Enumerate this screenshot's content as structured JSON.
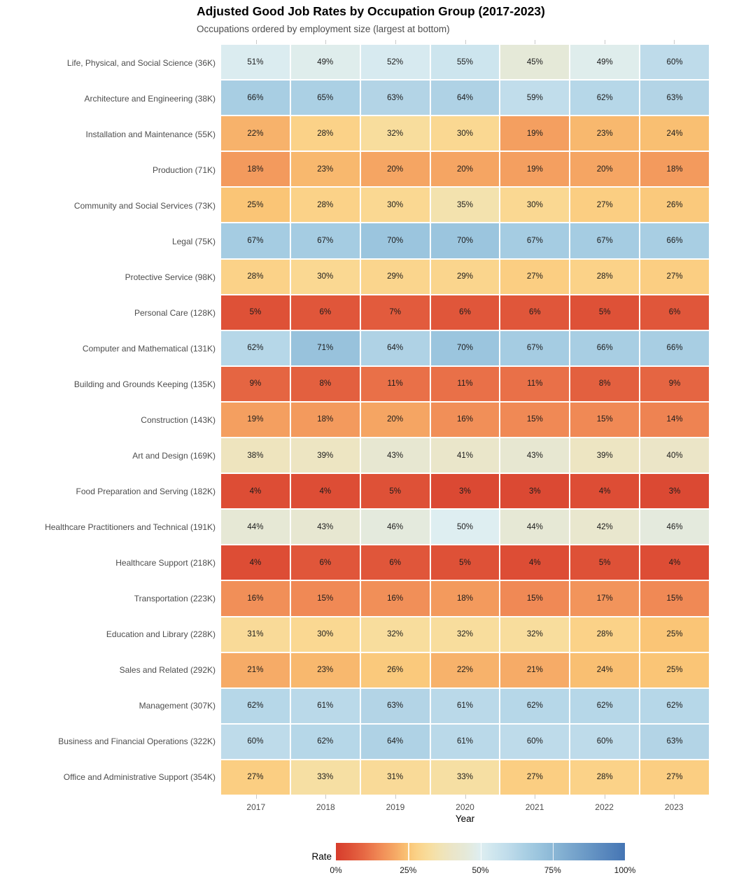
{
  "title": "Adjusted Good Job Rates by Occupation Group (2017-2023)",
  "subtitle": "Occupations ordered by employment size (largest at bottom)",
  "chart_data": {
    "type": "heatmap",
    "x_categories": [
      "2017",
      "2018",
      "2019",
      "2020",
      "2021",
      "2022",
      "2023"
    ],
    "xlabel": "Year",
    "value_unit": "%",
    "rows": [
      {
        "label": "Life, Physical, and Social Science (36K)",
        "values": [
          51,
          49,
          52,
          55,
          45,
          49,
          60
        ]
      },
      {
        "label": "Architecture and Engineering (38K)",
        "values": [
          66,
          65,
          63,
          64,
          59,
          62,
          63
        ]
      },
      {
        "label": "Installation and Maintenance (55K)",
        "values": [
          22,
          28,
          32,
          30,
          19,
          23,
          24
        ]
      },
      {
        "label": "Production (71K)",
        "values": [
          18,
          23,
          20,
          20,
          19,
          20,
          18
        ]
      },
      {
        "label": "Community and Social Services (73K)",
        "values": [
          25,
          28,
          30,
          35,
          30,
          27,
          26
        ]
      },
      {
        "label": "Legal (75K)",
        "values": [
          67,
          67,
          70,
          70,
          67,
          67,
          66
        ]
      },
      {
        "label": "Protective Service (98K)",
        "values": [
          28,
          30,
          29,
          29,
          27,
          28,
          27
        ]
      },
      {
        "label": "Personal Care (128K)",
        "values": [
          5,
          6,
          7,
          6,
          6,
          5,
          6
        ]
      },
      {
        "label": "Computer and Mathematical (131K)",
        "values": [
          62,
          71,
          64,
          70,
          67,
          66,
          66
        ]
      },
      {
        "label": "Building and Grounds Keeping (135K)",
        "values": [
          9,
          8,
          11,
          11,
          11,
          8,
          9
        ]
      },
      {
        "label": "Construction (143K)",
        "values": [
          19,
          18,
          20,
          16,
          15,
          15,
          14
        ]
      },
      {
        "label": "Art and Design (169K)",
        "values": [
          38,
          39,
          43,
          41,
          43,
          39,
          40
        ]
      },
      {
        "label": "Food Preparation and Serving (182K)",
        "values": [
          4,
          4,
          5,
          3,
          3,
          4,
          3
        ]
      },
      {
        "label": "Healthcare Practitioners and Technical (191K)",
        "values": [
          44,
          43,
          46,
          50,
          44,
          42,
          46
        ]
      },
      {
        "label": "Healthcare Support (218K)",
        "values": [
          4,
          6,
          6,
          5,
          4,
          5,
          4
        ]
      },
      {
        "label": "Transportation (223K)",
        "values": [
          16,
          15,
          16,
          18,
          15,
          17,
          15
        ]
      },
      {
        "label": "Education and Library (228K)",
        "values": [
          31,
          30,
          32,
          32,
          32,
          28,
          25
        ]
      },
      {
        "label": "Sales and Related (292K)",
        "values": [
          21,
          23,
          26,
          22,
          21,
          24,
          25
        ]
      },
      {
        "label": "Management (307K)",
        "values": [
          62,
          61,
          63,
          61,
          62,
          62,
          62
        ]
      },
      {
        "label": "Business and Financial Operations (322K)",
        "values": [
          60,
          62,
          64,
          61,
          60,
          60,
          63
        ]
      },
      {
        "label": "Office and Administrative Support (354K)",
        "values": [
          27,
          33,
          31,
          33,
          27,
          28,
          27
        ]
      }
    ],
    "legend": {
      "title": "Rate",
      "tick_values": [
        0,
        25,
        50,
        75,
        100
      ],
      "tick_labels": [
        "0%",
        "25%",
        "50%",
        "75%",
        "100%"
      ],
      "range": [
        0,
        100
      ],
      "position": "bottom"
    },
    "colors": {
      "scale_stops": [
        {
          "t": 0.0,
          "c": "#d73c2c"
        },
        {
          "t": 0.05,
          "c": "#de5137"
        },
        {
          "t": 0.1,
          "c": "#e76a45"
        },
        {
          "t": 0.15,
          "c": "#f08955"
        },
        {
          "t": 0.2,
          "c": "#f5a563"
        },
        {
          "t": 0.25,
          "c": "#fac576"
        },
        {
          "t": 0.28,
          "c": "#fbd288"
        },
        {
          "t": 0.32,
          "c": "#f8dd9d"
        },
        {
          "t": 0.36,
          "c": "#f1e3b4"
        },
        {
          "t": 0.4,
          "c": "#ebe5c7"
        },
        {
          "t": 0.45,
          "c": "#e5e9d8"
        },
        {
          "t": 0.5,
          "c": "#deeef1"
        },
        {
          "t": 0.55,
          "c": "#cde5ee"
        },
        {
          "t": 0.6,
          "c": "#bedbea"
        },
        {
          "t": 0.65,
          "c": "#abd0e4"
        },
        {
          "t": 0.7,
          "c": "#9bc5de"
        },
        {
          "t": 0.75,
          "c": "#8cb8d6"
        },
        {
          "t": 0.85,
          "c": "#6f9dc8"
        },
        {
          "t": 1.0,
          "c": "#4575b4"
        }
      ],
      "cell_text": "#1a1a1a",
      "axis_text": "#4d4d4d",
      "tick_mark": "#c9c9c9"
    },
    "grid": false,
    "ordering_note": "largest at bottom"
  }
}
